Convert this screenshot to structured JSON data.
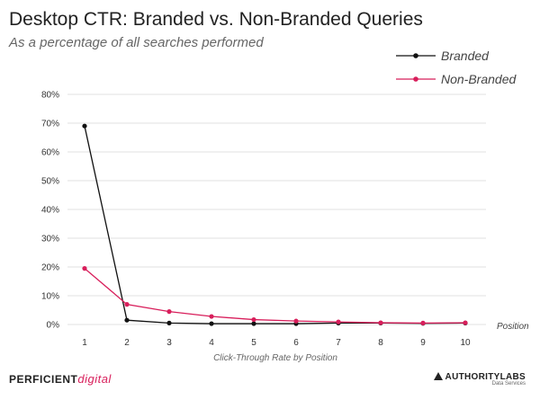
{
  "header": {
    "title": "Desktop CTR: Branded vs. Non-Branded Queries",
    "subtitle": "As a percentage of all searches performed"
  },
  "chart_data": {
    "type": "line",
    "title": "Desktop CTR: Branded vs. Non-Branded Queries",
    "subtitle": "As a percentage of all searches performed",
    "xlabel": "Click-Through Rate by Position",
    "x_axis_end_label": "Position",
    "ylabel": "",
    "x": [
      1,
      2,
      3,
      4,
      5,
      6,
      7,
      8,
      9,
      10
    ],
    "ylim": [
      0,
      80
    ],
    "yticks": [
      0,
      10,
      20,
      30,
      40,
      50,
      60,
      70,
      80
    ],
    "ytick_suffix": "%",
    "grid": true,
    "legend_position": "top-right",
    "series": [
      {
        "name": "Branded",
        "color": "#111111",
        "values": [
          69,
          1.5,
          0.5,
          0.3,
          0.3,
          0.3,
          0.5,
          0.5,
          0.4,
          0.5
        ]
      },
      {
        "name": "Non-Branded",
        "color": "#d81e5b",
        "values": [
          19.5,
          7,
          4.5,
          2.8,
          1.7,
          1.2,
          0.9,
          0.6,
          0.5,
          0.6
        ]
      }
    ]
  },
  "footer": {
    "left_brand": "PERFICIENT",
    "left_brand_accent": "digital",
    "right_brand": "AUTHORITYLABS",
    "right_brand_sub": "Data Services"
  }
}
